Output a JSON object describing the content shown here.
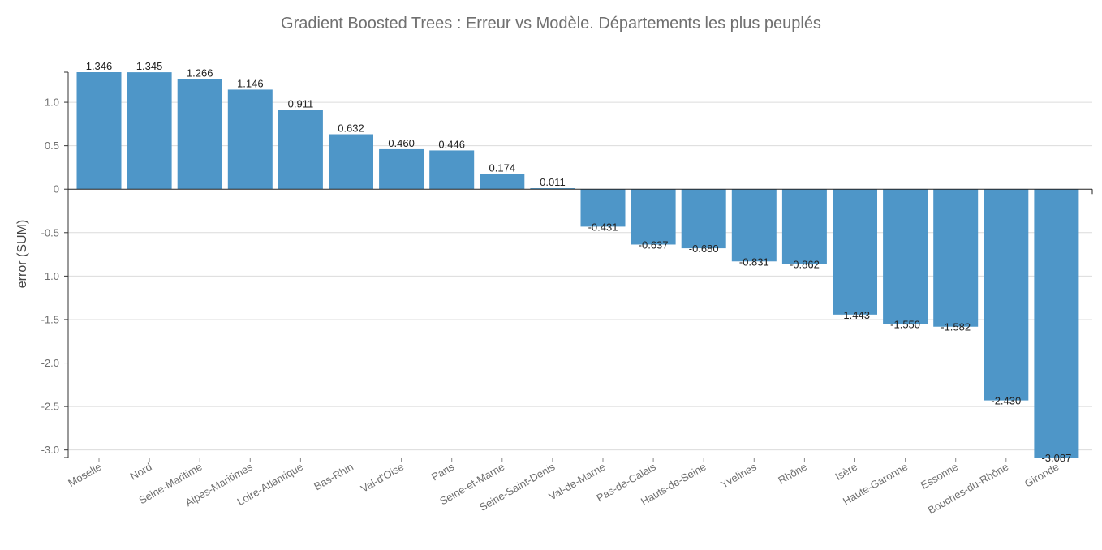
{
  "chart_data": {
    "type": "bar",
    "title": "Gradient Boosted Trees : Erreur vs Modèle. Départements les plus peuplés",
    "xlabel": "",
    "ylabel": "error (SUM)",
    "ylim": [
      -3.087,
      1.346
    ],
    "yticks": [
      1.0,
      0.5,
      0,
      -0.5,
      -1.0,
      -1.5,
      -2.0,
      -2.5,
      -3.0
    ],
    "ytick_labels": [
      "1.0",
      "0.5",
      "0",
      "-0.5",
      "-1.0",
      "-1.5",
      "-2.0",
      "-2.5",
      "-3.0"
    ],
    "grid": true,
    "bar_color": "#4e96c8",
    "categories": [
      "Moselle",
      "Nord",
      "Seine-Maritime",
      "Alpes-Maritimes",
      "Loire-Atlantique",
      "Bas-Rhin",
      "Val-d'Oise",
      "Paris",
      "Seine-et-Marne",
      "Seine-Saint-Denis",
      "Val-de-Marne",
      "Pas-de-Calais",
      "Hauts-de-Seine",
      "Yvelines",
      "Rhône",
      "Isère",
      "Haute-Garonne",
      "Essonne",
      "Bouches-du-Rhône",
      "Gironde"
    ],
    "values": [
      1.346,
      1.345,
      1.266,
      1.146,
      0.911,
      0.632,
      0.46,
      0.446,
      0.174,
      0.011,
      -0.431,
      -0.637,
      -0.68,
      -0.831,
      -0.862,
      -1.443,
      -1.55,
      -1.582,
      -2.43,
      -3.087
    ],
    "value_labels": [
      "1.346",
      "1.345",
      "1.266",
      "1.146",
      "0.911",
      "0.632",
      "0.460",
      "0.446",
      "0.174",
      "0.011",
      "-0.431",
      "-0.637",
      "-0.680",
      "-0.831",
      "-0.862",
      "-1.443",
      "-1.550",
      "-1.582",
      "-2.430",
      "-3.087"
    ]
  }
}
